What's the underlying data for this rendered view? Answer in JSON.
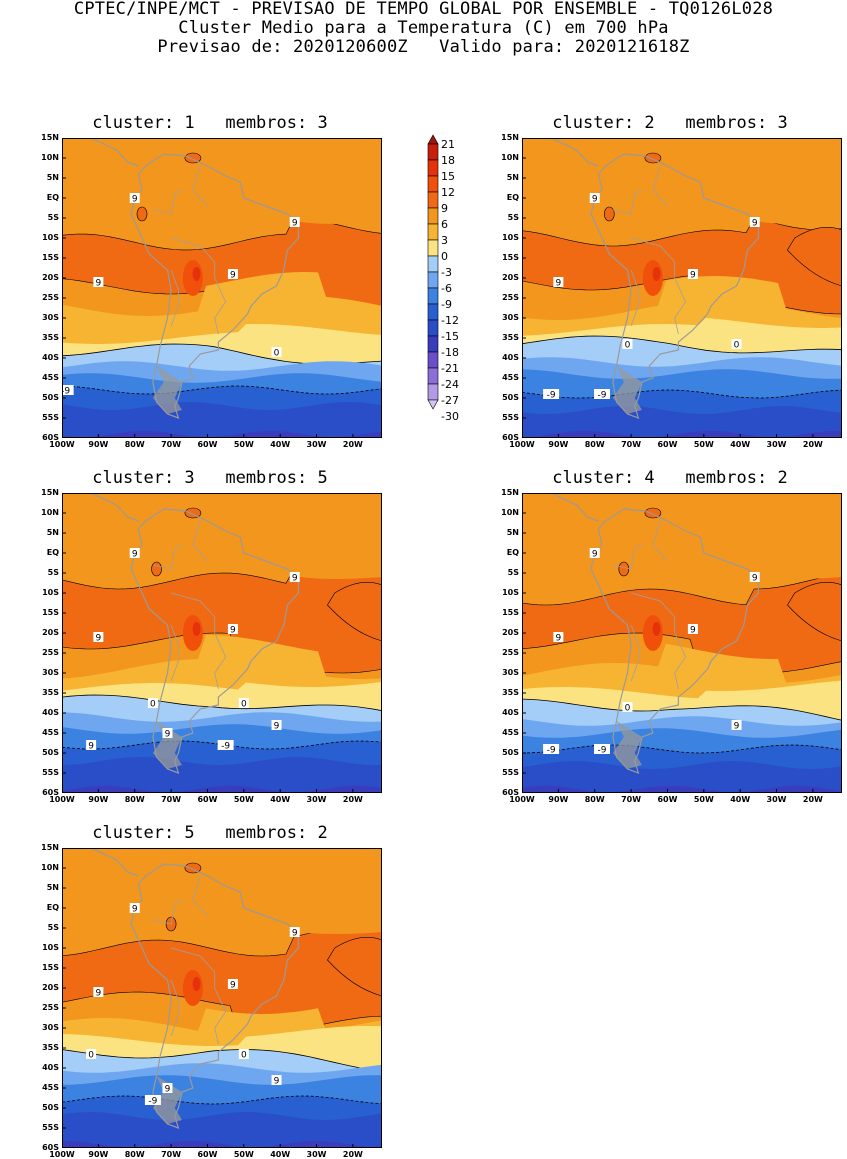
{
  "header": {
    "line1": "CPTEC/INPE/MCT - PREVISAO DE TEMPO GLOBAL POR ENSEMBLE - TQ0126L028",
    "line2": "Cluster Medio para a Temperatura (C) em 700 hPa",
    "line3": "Previsao de: 2020120600Z   Valido para: 2020121618Z"
  },
  "lat_labels": [
    "15N",
    "10N",
    "5N",
    "EQ",
    "5S",
    "10S",
    "15S",
    "20S",
    "25S",
    "30S",
    "35S",
    "40S",
    "45S",
    "50S",
    "55S",
    "60S"
  ],
  "lon_labels": [
    "100W",
    "90W",
    "80W",
    "70W",
    "60W",
    "50W",
    "40W",
    "30W",
    "20W"
  ],
  "colorbar": {
    "levels": [
      "21",
      "18",
      "15",
      "12",
      "9",
      "6",
      "3",
      "0",
      "-3",
      "-6",
      "-9",
      "-12",
      "-15",
      "-18",
      "-21",
      "-24",
      "-27",
      "-30"
    ],
    "colors": [
      "#a3140c",
      "#c81e0c",
      "#e6320a",
      "#f0500a",
      "#f06a14",
      "#f2961e",
      "#f7b432",
      "#fce382",
      "#a4cdf7",
      "#6ea7f0",
      "#3c82e1",
      "#2860d2",
      "#2a4ec8",
      "#3a3cbe",
      "#6a4ec8",
      "#8c6ed8",
      "#b49ae6",
      "#d2c3f0"
    ]
  },
  "panels": [
    {
      "title": "cluster: 1   membros: 3",
      "contour_labels": [
        "9",
        "9",
        "9",
        "9",
        "0",
        "-9"
      ]
    },
    {
      "title": "cluster: 2   membros: 3",
      "contour_labels": [
        "9",
        "9",
        "9",
        "9",
        "0",
        "0",
        "-9",
        "-9"
      ]
    },
    {
      "title": "cluster: 3   membros: 5",
      "contour_labels": [
        "9",
        "9",
        "9",
        "9",
        "9",
        "9",
        "9",
        "0",
        "0",
        "-9",
        "-9"
      ]
    },
    {
      "title": "cluster: 4   membros: 2",
      "contour_labels": [
        "9",
        "9",
        "9",
        "9",
        "9",
        "0",
        "-9",
        "-9"
      ]
    },
    {
      "title": "cluster: 5   membros: 2",
      "contour_labels": [
        "9",
        "9",
        "9",
        "9",
        "9",
        "9",
        "0",
        "0",
        "-9"
      ]
    }
  ]
}
